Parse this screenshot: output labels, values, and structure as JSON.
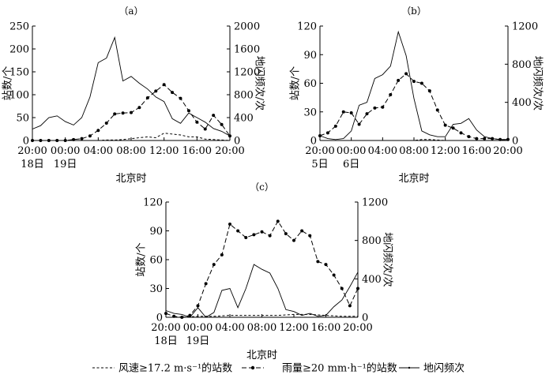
{
  "chart_data": [
    {
      "type": "line",
      "panel_label": "（a）",
      "xlabel": "北京时",
      "ylabel_left": "站数/个",
      "ylabel_right": "地闪频次/次",
      "ylim_left": [
        0,
        250
      ],
      "yticks_left": [
        0,
        50,
        100,
        150,
        200,
        250
      ],
      "ylim_right": [
        0,
        2000
      ],
      "yticks_right": [
        0,
        400,
        800,
        1200,
        1600,
        2000
      ],
      "x_range": [
        0,
        24
      ],
      "xticks": [
        {
          "x": 0,
          "label": "20:00"
        },
        {
          "x": 4,
          "label": "00:00"
        },
        {
          "x": 8,
          "label": "04:00"
        },
        {
          "x": 12,
          "label": "08:00"
        },
        {
          "x": 16,
          "label": "12:00"
        },
        {
          "x": 20,
          "label": "16:00"
        },
        {
          "x": 24,
          "label": "20:00"
        }
      ],
      "date_labels": [
        {
          "x": 0,
          "label": "18日"
        },
        {
          "x": 4,
          "label": "19日"
        }
      ],
      "series": [
        {
          "key": "wind",
          "axis": "left",
          "x": [
            0,
            1,
            2,
            3,
            4,
            5,
            6,
            7,
            8,
            9,
            10,
            11,
            12,
            13,
            14,
            15,
            16,
            17,
            18,
            19,
            20,
            21,
            22,
            23,
            24
          ],
          "values": [
            0,
            0,
            0,
            0,
            0,
            0,
            0,
            0,
            0,
            1,
            1,
            2,
            4,
            6,
            8,
            6,
            16,
            14,
            12,
            8,
            8,
            3,
            2,
            1,
            0
          ]
        },
        {
          "key": "rain",
          "axis": "left",
          "x": [
            0,
            1,
            2,
            3,
            4,
            5,
            6,
            7,
            8,
            9,
            10,
            11,
            12,
            13,
            14,
            15,
            16,
            17,
            18,
            19,
            20,
            21,
            22,
            23,
            24
          ],
          "values": [
            0,
            0,
            0,
            0,
            0,
            2,
            4,
            10,
            22,
            38,
            58,
            60,
            61,
            72,
            93,
            108,
            122,
            105,
            92,
            65,
            40,
            25,
            55,
            35,
            10
          ]
        },
        {
          "key": "lightning",
          "axis": "right",
          "x": [
            0,
            1,
            2,
            3,
            4,
            5,
            6,
            7,
            8,
            9,
            10,
            11,
            12,
            13,
            14,
            15,
            16,
            17,
            18,
            19,
            20,
            21,
            22,
            23,
            24
          ],
          "values": [
            200,
            260,
            400,
            430,
            330,
            270,
            400,
            760,
            1360,
            1440,
            1800,
            1040,
            1120,
            1000,
            900,
            760,
            680,
            380,
            300,
            480,
            400,
            320,
            210,
            160,
            80
          ]
        }
      ]
    },
    {
      "type": "line",
      "panel_label": "（b）",
      "xlabel": "北京时",
      "ylabel_left": "站数/个",
      "ylabel_right": "地闪频次/次",
      "ylim_left": [
        0,
        120
      ],
      "yticks_left": [
        0,
        30,
        60,
        90,
        120
      ],
      "ylim_right": [
        0,
        1200
      ],
      "yticks_right": [
        0,
        400,
        800,
        1200
      ],
      "x_range": [
        0,
        24
      ],
      "xticks": [
        {
          "x": 0,
          "label": "20:00"
        },
        {
          "x": 4,
          "label": "00:00"
        },
        {
          "x": 8,
          "label": "04:00"
        },
        {
          "x": 12,
          "label": "08:00"
        },
        {
          "x": 16,
          "label": "12:00"
        },
        {
          "x": 20,
          "label": "16:00"
        },
        {
          "x": 24,
          "label": "20:00"
        }
      ],
      "date_labels": [
        {
          "x": 0,
          "label": "5日"
        },
        {
          "x": 4,
          "label": "6日"
        }
      ],
      "series": [
        {
          "key": "wind",
          "axis": "left",
          "x": [
            0,
            2,
            4,
            6,
            8,
            10,
            11,
            12,
            13,
            14,
            16,
            18,
            20,
            22,
            24
          ],
          "values": [
            0,
            0,
            0,
            0,
            0,
            0,
            0,
            0,
            1,
            1,
            0,
            0,
            0,
            0,
            0
          ]
        },
        {
          "key": "rain",
          "axis": "left",
          "x": [
            0,
            1,
            2,
            3,
            4,
            5,
            6,
            7,
            8,
            9,
            10,
            11,
            12,
            13,
            14,
            15,
            16,
            17,
            18,
            19,
            20,
            21,
            22,
            23,
            24
          ],
          "values": [
            5,
            8,
            15,
            30,
            29,
            17,
            28,
            34,
            35,
            48,
            63,
            70,
            62,
            60,
            52,
            32,
            16,
            13,
            8,
            4,
            2,
            2,
            2,
            1,
            1
          ]
        },
        {
          "key": "lightning",
          "axis": "right",
          "x": [
            0,
            1,
            2,
            3,
            4,
            5,
            6,
            7,
            8,
            9,
            10,
            11,
            12,
            13,
            14,
            15,
            16,
            17,
            18,
            19,
            20,
            21,
            22,
            23,
            24
          ],
          "values": [
            50,
            20,
            10,
            20,
            100,
            370,
            400,
            650,
            690,
            780,
            1140,
            890,
            440,
            100,
            60,
            40,
            40,
            170,
            180,
            230,
            110,
            40,
            20,
            10,
            0
          ]
        }
      ]
    },
    {
      "type": "line",
      "panel_label": "（c）",
      "xlabel": "北京时",
      "ylabel_left": "站数/个",
      "ylabel_right": "地闪频次/次",
      "ylim_left": [
        0,
        120
      ],
      "yticks_left": [
        0,
        30,
        60,
        90,
        120
      ],
      "ylim_right": [
        0,
        1200
      ],
      "yticks_right": [
        0,
        400,
        800,
        1200
      ],
      "x_range": [
        0,
        24
      ],
      "xticks": [
        {
          "x": 0,
          "label": "20:00"
        },
        {
          "x": 4,
          "label": "00:00"
        },
        {
          "x": 8,
          "label": "04:00"
        },
        {
          "x": 12,
          "label": "08:00"
        },
        {
          "x": 16,
          "label": "12:00"
        },
        {
          "x": 20,
          "label": "16:00"
        },
        {
          "x": 24,
          "label": "20:00"
        }
      ],
      "date_labels": [
        {
          "x": 0,
          "label": "18日"
        },
        {
          "x": 4,
          "label": "19日"
        }
      ],
      "series": [
        {
          "key": "wind",
          "axis": "left",
          "x": [
            0,
            2,
            4,
            6,
            8,
            10,
            12,
            14,
            16,
            18,
            20,
            22,
            24
          ],
          "values": [
            0,
            0,
            1,
            1,
            2,
            2,
            2,
            2,
            3,
            3,
            2,
            1,
            1
          ]
        },
        {
          "key": "rain",
          "axis": "left",
          "x": [
            0,
            1,
            2,
            3,
            4,
            5,
            6,
            7,
            8,
            9,
            10,
            11,
            12,
            13,
            14,
            15,
            16,
            17,
            18,
            19,
            20,
            21,
            22,
            23,
            24
          ],
          "values": [
            4,
            1,
            0,
            2,
            12,
            35,
            55,
            65,
            97,
            90,
            83,
            86,
            89,
            85,
            100,
            87,
            80,
            90,
            85,
            58,
            55,
            44,
            30,
            12,
            30
          ]
        },
        {
          "key": "lightning",
          "axis": "right",
          "x": [
            0,
            1,
            2,
            3,
            4,
            5,
            6,
            7,
            8,
            9,
            10,
            11,
            12,
            13,
            14,
            15,
            16,
            17,
            18,
            19,
            20,
            21,
            22,
            23,
            24
          ],
          "values": [
            70,
            40,
            30,
            0,
            100,
            0,
            50,
            280,
            300,
            100,
            300,
            550,
            500,
            460,
            300,
            80,
            60,
            20,
            40,
            10,
            20,
            110,
            180,
            320,
            470
          ]
        }
      ]
    }
  ],
  "legend": [
    {
      "key": "wind",
      "label": "风速≥17.2 m·s⁻¹的站数"
    },
    {
      "key": "rain",
      "label": "雨量≥20 mm·h⁻¹的站数"
    },
    {
      "key": "lightning",
      "label": "地闪频次"
    }
  ]
}
